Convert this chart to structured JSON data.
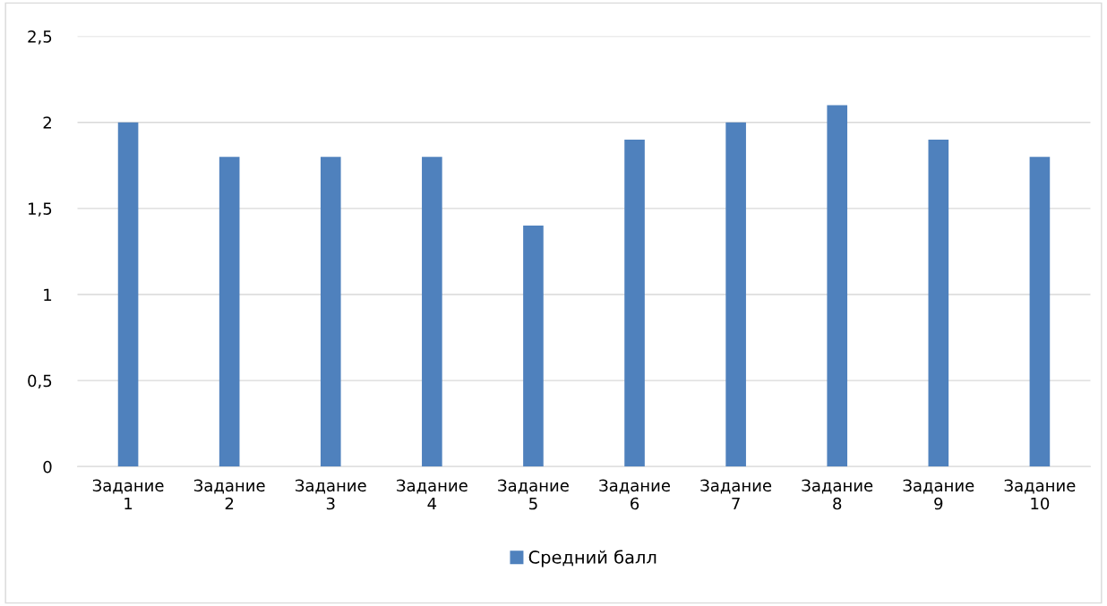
{
  "chart_data": {
    "type": "bar",
    "categories": [
      "Задание\n1",
      "Задание\n2",
      "Задание\n3",
      "Задание\n4",
      "Задание\n5",
      "Задание\n6",
      "Задание\n7",
      "Задание\n8",
      "Задание\n9",
      "Задание\n10"
    ],
    "series": [
      {
        "name": "Средний балл",
        "color": "#4f81bd",
        "values": [
          2.0,
          1.8,
          1.8,
          1.8,
          1.4,
          1.9,
          2.0,
          2.1,
          1.9,
          1.8
        ]
      }
    ],
    "ylim": [
      0,
      2.5
    ],
    "yticks": [
      {
        "value": 0,
        "label": "0"
      },
      {
        "value": 0.5,
        "label": "0,5"
      },
      {
        "value": 1,
        "label": "1"
      },
      {
        "value": 1.5,
        "label": "1,5"
      },
      {
        "value": 2,
        "label": "2"
      },
      {
        "value": 2.5,
        "label": "2,5"
      }
    ],
    "grid": "y",
    "legend": "bottom"
  }
}
